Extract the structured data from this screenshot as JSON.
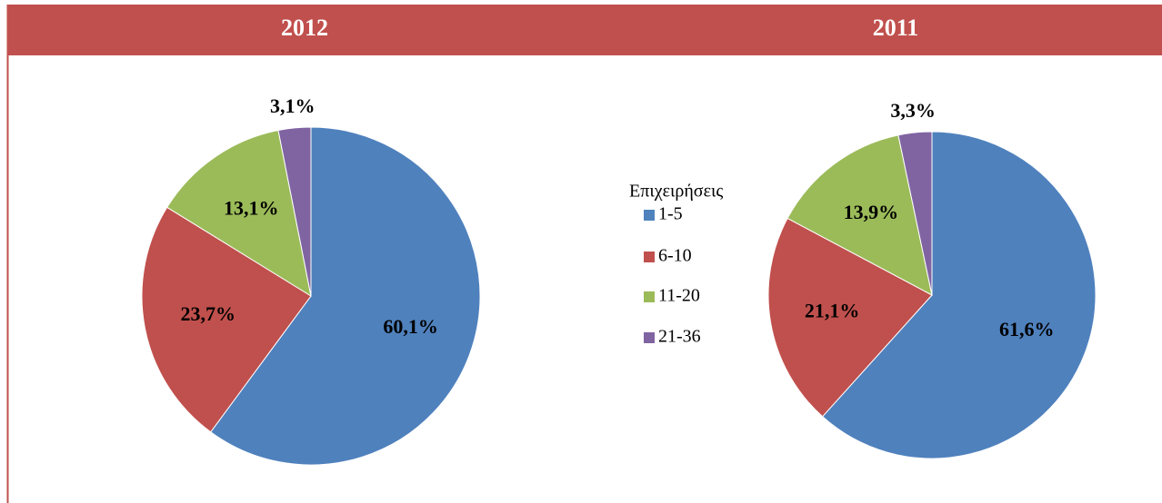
{
  "chart_data": [
    {
      "type": "pie",
      "title": "2012",
      "legend_title": "Επιχειρήσεις",
      "categories": [
        "1-5",
        "6-10",
        "11-20",
        "21-36"
      ],
      "values": [
        60.1,
        23.7,
        13.1,
        3.1
      ],
      "value_labels": [
        "60,1%",
        "23,7%",
        "13,1%",
        "3,1%"
      ],
      "colors": [
        "#4f81bd",
        "#c0504d",
        "#9bbb59",
        "#8064a2"
      ]
    },
    {
      "type": "pie",
      "title": "2011",
      "categories": [
        "1-5",
        "6-10",
        "11-20",
        "21-36"
      ],
      "values": [
        61.6,
        21.1,
        13.9,
        3.3
      ],
      "value_labels": [
        "61,6%",
        "21,1%",
        "13,9%",
        "3,3%"
      ],
      "colors": [
        "#4f81bd",
        "#c0504d",
        "#9bbb59",
        "#8064a2"
      ]
    }
  ]
}
